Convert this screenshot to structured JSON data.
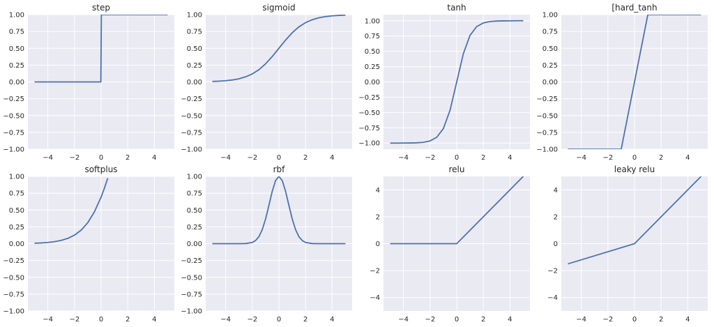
{
  "chart_data": [
    {
      "type": "line",
      "title": "step",
      "x": [
        -5,
        -4,
        -3,
        -2,
        -1,
        -0.02,
        0.02,
        1,
        2,
        3,
        4,
        5
      ],
      "series": [
        {
          "values": [
            0,
            0,
            0,
            0,
            0,
            0,
            1,
            1,
            1,
            1,
            1,
            1
          ]
        }
      ],
      "xlim": [
        -5.5,
        5.5
      ],
      "ylim": [
        -1.0,
        1.0
      ],
      "xticks": [
        -4,
        -2,
        0,
        2,
        4
      ],
      "xtick_labels": [
        "−4",
        "−2",
        "0",
        "2",
        "4"
      ],
      "yticks": [
        -1.0,
        -0.75,
        -0.5,
        -0.25,
        0.0,
        0.25,
        0.5,
        0.75,
        1.0
      ],
      "ytick_labels": [
        "−1.00",
        "−0.75",
        "−0.50",
        "−0.25",
        "0.00",
        "0.25",
        "0.50",
        "0.75",
        "1.00"
      ],
      "grid": true
    },
    {
      "type": "line",
      "title": "sigmoid",
      "x": [
        -5,
        -4.5,
        -4,
        -3.5,
        -3,
        -2.5,
        -2,
        -1.5,
        -1,
        -0.5,
        0,
        0.5,
        1,
        1.5,
        2,
        2.5,
        3,
        3.5,
        4,
        4.5,
        5
      ],
      "series": [
        {
          "values": [
            0.007,
            0.011,
            0.018,
            0.029,
            0.047,
            0.076,
            0.119,
            0.182,
            0.269,
            0.378,
            0.5,
            0.622,
            0.731,
            0.818,
            0.881,
            0.924,
            0.953,
            0.971,
            0.982,
            0.989,
            0.993
          ]
        }
      ],
      "xlim": [
        -5.5,
        5.5
      ],
      "ylim": [
        -1.0,
        1.0
      ],
      "xticks": [
        -4,
        -2,
        0,
        2,
        4
      ],
      "xtick_labels": [
        "−4",
        "−2",
        "0",
        "2",
        "4"
      ],
      "yticks": [
        -1.0,
        -0.75,
        -0.5,
        -0.25,
        0.0,
        0.25,
        0.5,
        0.75,
        1.0
      ],
      "ytick_labels": [
        "−1.00",
        "−0.75",
        "−0.50",
        "−0.25",
        "0.00",
        "0.25",
        "0.50",
        "0.75",
        "1.00"
      ],
      "grid": true
    },
    {
      "type": "line",
      "title": "tanh",
      "x": [
        -5,
        -4.5,
        -4,
        -3.5,
        -3,
        -2.5,
        -2,
        -1.5,
        -1,
        -0.5,
        0,
        0.5,
        1,
        1.5,
        2,
        2.5,
        3,
        3.5,
        4,
        4.5,
        5
      ],
      "series": [
        {
          "values": [
            -1.0,
            -1.0,
            -0.999,
            -0.998,
            -0.995,
            -0.987,
            -0.964,
            -0.905,
            -0.762,
            -0.462,
            0.0,
            0.462,
            0.762,
            0.905,
            0.964,
            0.987,
            0.995,
            0.998,
            0.999,
            1.0,
            1.0
          ]
        }
      ],
      "xlim": [
        -5.5,
        5.5
      ],
      "ylim": [
        -1.1,
        1.1
      ],
      "xticks": [
        -4,
        -2,
        0,
        2,
        4
      ],
      "xtick_labels": [
        "−4",
        "−2",
        "0",
        "2",
        "4"
      ],
      "yticks": [
        -1.0,
        -0.75,
        -0.5,
        -0.25,
        0.0,
        0.25,
        0.5,
        0.75,
        1.0
      ],
      "ytick_labels": [
        "−1.00",
        "−0.75",
        "−0.50",
        "−0.25",
        "0.00",
        "0.25",
        "0.50",
        "0.75",
        "1.00"
      ],
      "grid": true
    },
    {
      "type": "line",
      "title": "[hard_tanh",
      "x": [
        -5,
        -1,
        1,
        5
      ],
      "series": [
        {
          "values": [
            -1,
            -1,
            1,
            1
          ]
        }
      ],
      "xlim": [
        -5.5,
        5.5
      ],
      "ylim": [
        -1.0,
        1.0
      ],
      "xticks": [
        -4,
        -2,
        0,
        2,
        4
      ],
      "xtick_labels": [
        "−4",
        "−2",
        "0",
        "2",
        "4"
      ],
      "yticks": [
        -1.0,
        -0.75,
        -0.5,
        -0.25,
        0.0,
        0.25,
        0.5,
        0.75,
        1.0
      ],
      "ytick_labels": [
        "−1.00",
        "−0.75",
        "−0.50",
        "−0.25",
        "0.00",
        "0.25",
        "0.50",
        "0.75",
        "1.00"
      ],
      "grid": true
    },
    {
      "type": "line",
      "title": "softplus",
      "x": [
        -5,
        -4.5,
        -4,
        -3.5,
        -3,
        -2.5,
        -2,
        -1.5,
        -1,
        -0.5,
        0,
        0.25,
        0.5
      ],
      "series": [
        {
          "values": [
            0.007,
            0.011,
            0.018,
            0.03,
            0.049,
            0.079,
            0.127,
            0.201,
            0.313,
            0.474,
            0.693,
            0.826,
            0.974
          ]
        }
      ],
      "xlim": [
        -5.5,
        5.5
      ],
      "ylim": [
        -1.0,
        1.0
      ],
      "xticks": [
        -4,
        -2,
        0,
        2,
        4
      ],
      "xtick_labels": [
        "−4",
        "−2",
        "0",
        "2",
        "4"
      ],
      "yticks": [
        -1.0,
        -0.75,
        -0.5,
        -0.25,
        0.0,
        0.25,
        0.5,
        0.75,
        1.0
      ],
      "ytick_labels": [
        "−1.00",
        "−0.75",
        "−0.50",
        "−0.25",
        "0.00",
        "0.25",
        "0.50",
        "0.75",
        "1.00"
      ],
      "grid": true
    },
    {
      "type": "line",
      "title": "rbf",
      "x": [
        -5,
        -4,
        -3,
        -2.5,
        -2,
        -1.75,
        -1.5,
        -1.25,
        -1,
        -0.75,
        -0.5,
        -0.25,
        0,
        0.25,
        0.5,
        0.75,
        1,
        1.25,
        1.5,
        1.75,
        2,
        2.5,
        3,
        4,
        5
      ],
      "series": [
        {
          "values": [
            0.0,
            0.0,
            0.0,
            0.002,
            0.018,
            0.047,
            0.105,
            0.21,
            0.368,
            0.57,
            0.779,
            0.939,
            1.0,
            0.939,
            0.779,
            0.57,
            0.368,
            0.21,
            0.105,
            0.047,
            0.018,
            0.002,
            0.0,
            0.0,
            0.0
          ]
        }
      ],
      "xlim": [
        -5.5,
        5.5
      ],
      "ylim": [
        -1.0,
        1.0
      ],
      "xticks": [
        -4,
        -2,
        0,
        2,
        4
      ],
      "xtick_labels": [
        "−4",
        "−2",
        "0",
        "2",
        "4"
      ],
      "yticks": [
        -1.0,
        -0.75,
        -0.5,
        -0.25,
        0.0,
        0.25,
        0.5,
        0.75,
        1.0
      ],
      "ytick_labels": [
        "−1.00",
        "−0.75",
        "−0.50",
        "−0.25",
        "0.00",
        "0.25",
        "0.50",
        "0.75",
        "1.00"
      ],
      "grid": true
    },
    {
      "type": "line",
      "title": "relu",
      "x": [
        -5,
        0,
        5
      ],
      "series": [
        {
          "values": [
            0,
            0,
            5
          ]
        }
      ],
      "xlim": [
        -5.5,
        5.5
      ],
      "ylim": [
        -5.0,
        5.0
      ],
      "xticks": [
        -4,
        -2,
        0,
        2,
        4
      ],
      "xtick_labels": [
        "−4",
        "−2",
        "0",
        "2",
        "4"
      ],
      "yticks": [
        -4,
        -2,
        0,
        2,
        4
      ],
      "ytick_labels": [
        "−4",
        "−2",
        "0",
        "2",
        "4"
      ],
      "grid": true
    },
    {
      "type": "line",
      "title": "leaky relu",
      "x": [
        -5,
        0,
        5
      ],
      "series": [
        {
          "values": [
            -1.5,
            0,
            5
          ]
        }
      ],
      "xlim": [
        -5.5,
        5.5
      ],
      "ylim": [
        -5.0,
        5.0
      ],
      "xticks": [
        -4,
        -2,
        0,
        2,
        4
      ],
      "xtick_labels": [
        "−4",
        "−2",
        "0",
        "2",
        "4"
      ],
      "yticks": [
        -4,
        -2,
        0,
        2,
        4
      ],
      "ytick_labels": [
        "−4",
        "−2",
        "0",
        "2",
        "4"
      ],
      "grid": true
    }
  ],
  "style": {
    "axes_bg": "#eaeaf2",
    "grid_color": "#ffffff",
    "line_color": "#4c72b0",
    "text_color": "#262626"
  }
}
